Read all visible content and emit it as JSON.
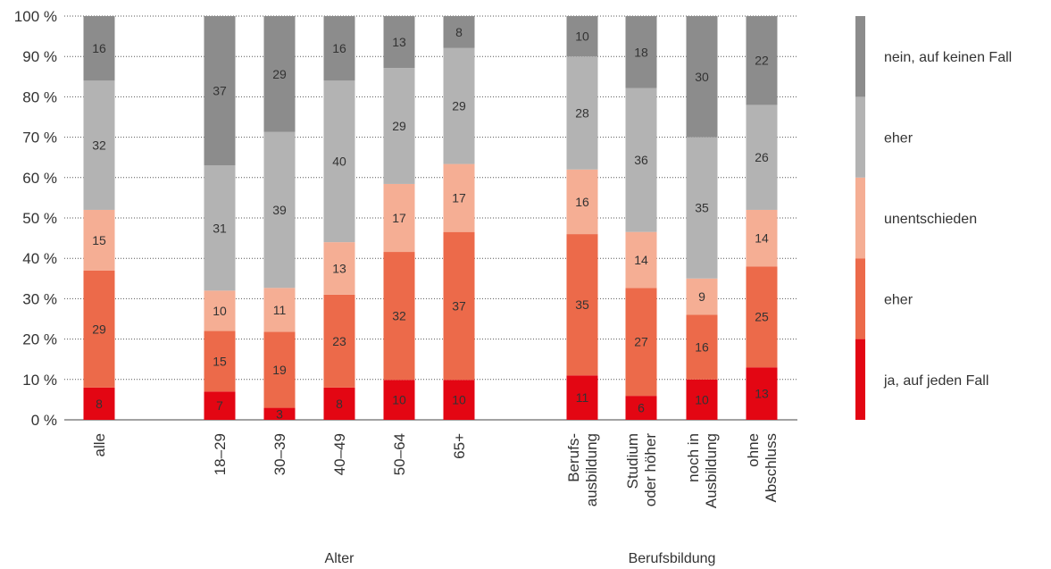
{
  "chart_data": {
    "type": "bar",
    "stacked": true,
    "ylim": [
      0,
      100
    ],
    "yticks": [
      "0 %",
      "10 %",
      "20 %",
      "30 %",
      "40 %",
      "50 %",
      "60 %",
      "70 %",
      "80 %",
      "90 %",
      "100 %"
    ],
    "grid": "dotted horizontal",
    "legend_position": "right",
    "categories": [
      {
        "label": [
          "alle"
        ]
      },
      {
        "label": [
          "18–29"
        ]
      },
      {
        "label": [
          "30–39"
        ]
      },
      {
        "label": [
          "40–49"
        ]
      },
      {
        "label": [
          "50–64"
        ]
      },
      {
        "label": [
          "65+"
        ]
      },
      {
        "label": [
          "Berufs-",
          "ausbildung"
        ]
      },
      {
        "label": [
          "Studium",
          "oder höher"
        ]
      },
      {
        "label": [
          "noch in",
          "Ausbildung"
        ]
      },
      {
        "label": [
          "ohne",
          "Abschluss"
        ]
      }
    ],
    "groups": [
      {
        "label": "Alter",
        "categories": [
          1,
          2,
          3,
          4,
          5
        ]
      },
      {
        "label": "Berufsbildung",
        "categories": [
          6,
          7,
          8,
          9
        ]
      }
    ],
    "series": [
      {
        "name": "ja, auf jeden Fall",
        "color": "#e30613",
        "values": [
          8,
          7,
          3,
          8,
          10,
          10,
          11,
          6,
          10,
          13
        ]
      },
      {
        "name": "eher",
        "color": "#ec6a4a",
        "values": [
          29,
          15,
          19,
          23,
          32,
          37,
          35,
          27,
          16,
          25
        ]
      },
      {
        "name": "unentschieden",
        "color": "#f5ae94",
        "values": [
          15,
          10,
          11,
          13,
          17,
          17,
          16,
          14,
          9,
          14
        ]
      },
      {
        "name": "eher",
        "color": "#b3b3b3",
        "values": [
          32,
          31,
          39,
          40,
          29,
          29,
          28,
          36,
          35,
          26
        ]
      },
      {
        "name": "nein, auf keinen Fall",
        "color": "#8c8c8c",
        "values": [
          16,
          37,
          29,
          16,
          13,
          8,
          10,
          18,
          30,
          22
        ]
      }
    ]
  }
}
